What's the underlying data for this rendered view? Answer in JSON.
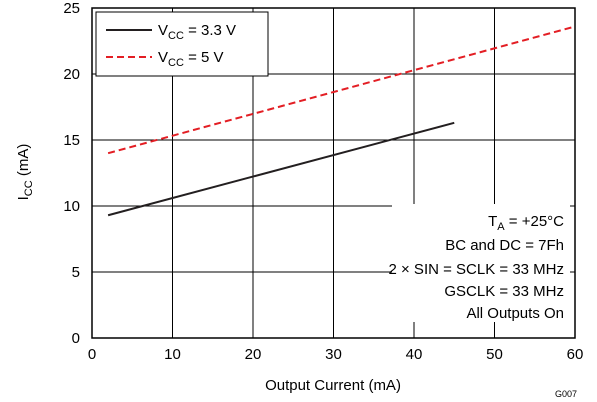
{
  "chart_data": {
    "type": "line",
    "xlabel": "Output Current (mA)",
    "ylabel": {
      "main": "I",
      "sub": "CC",
      "rest": " (mA)"
    },
    "xlim": [
      0,
      60
    ],
    "ylim": [
      0,
      25
    ],
    "x_ticks": [
      "0",
      "10",
      "20",
      "30",
      "40",
      "50",
      "60"
    ],
    "y_ticks": [
      "0",
      "5",
      "10",
      "15",
      "20",
      "25"
    ],
    "grid": true,
    "legend_position": "top-left",
    "series": [
      {
        "name": "V_CC = 3.3 V",
        "label": {
          "main": "V",
          "sub": "CC",
          "rest": " = 3.3 V"
        },
        "style": "solid",
        "color": "#231f20",
        "x": [
          2,
          45
        ],
        "y": [
          9.3,
          16.3
        ]
      },
      {
        "name": "V_CC = 5 V",
        "label": {
          "main": "V",
          "sub": "CC",
          "rest": " = 5 V"
        },
        "style": "dashed",
        "color": "#e31e24",
        "x": [
          2,
          60
        ],
        "y": [
          14.0,
          23.6
        ]
      }
    ],
    "annotations": {
      "ta": {
        "main": "T",
        "sub": "A",
        "rest": " = +25°C"
      },
      "lines": [
        "BC and DC = 7Fh",
        "2 × SIN = SCLK = 33 MHz",
        "GSCLK = 33 MHz",
        "All Outputs On"
      ]
    },
    "figure_id": "G007"
  }
}
